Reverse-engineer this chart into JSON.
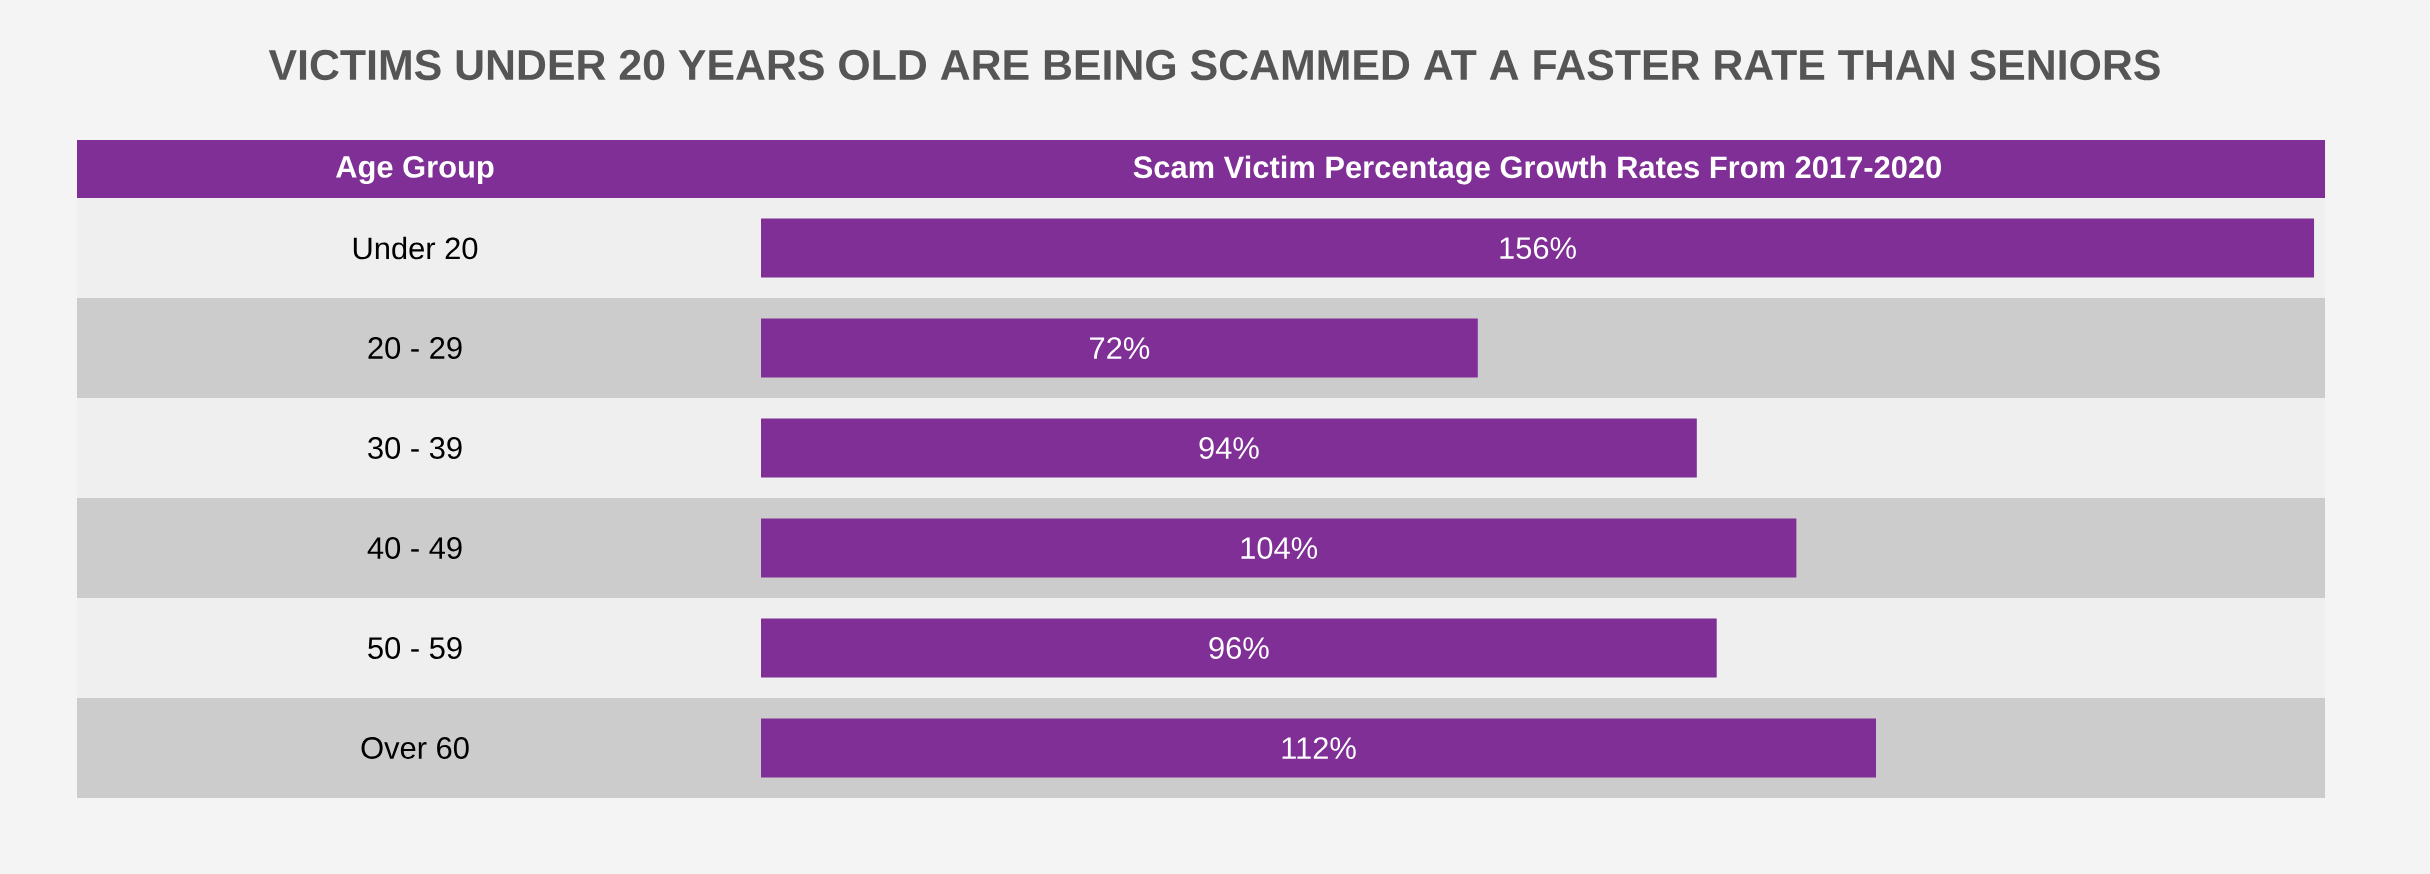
{
  "chart_data": {
    "type": "bar",
    "orientation": "horizontal",
    "title": "VICTIMS UNDER 20 YEARS OLD ARE BEING SCAMMED AT A FASTER RATE THAN SENIORS",
    "ylabel": "Age Group",
    "xlabel": "Scam Victim Percentage Growth Rates From 2017-2020",
    "categories": [
      "Under 20",
      "20 - 29",
      "30 - 39",
      "40 - 49",
      "50 - 59",
      "Over 60"
    ],
    "values": [
      156,
      72,
      94,
      104,
      96,
      112
    ],
    "value_labels": [
      "156%",
      "72%",
      "94%",
      "104%",
      "96%",
      "112%"
    ],
    "color": "#7f2f96"
  }
}
